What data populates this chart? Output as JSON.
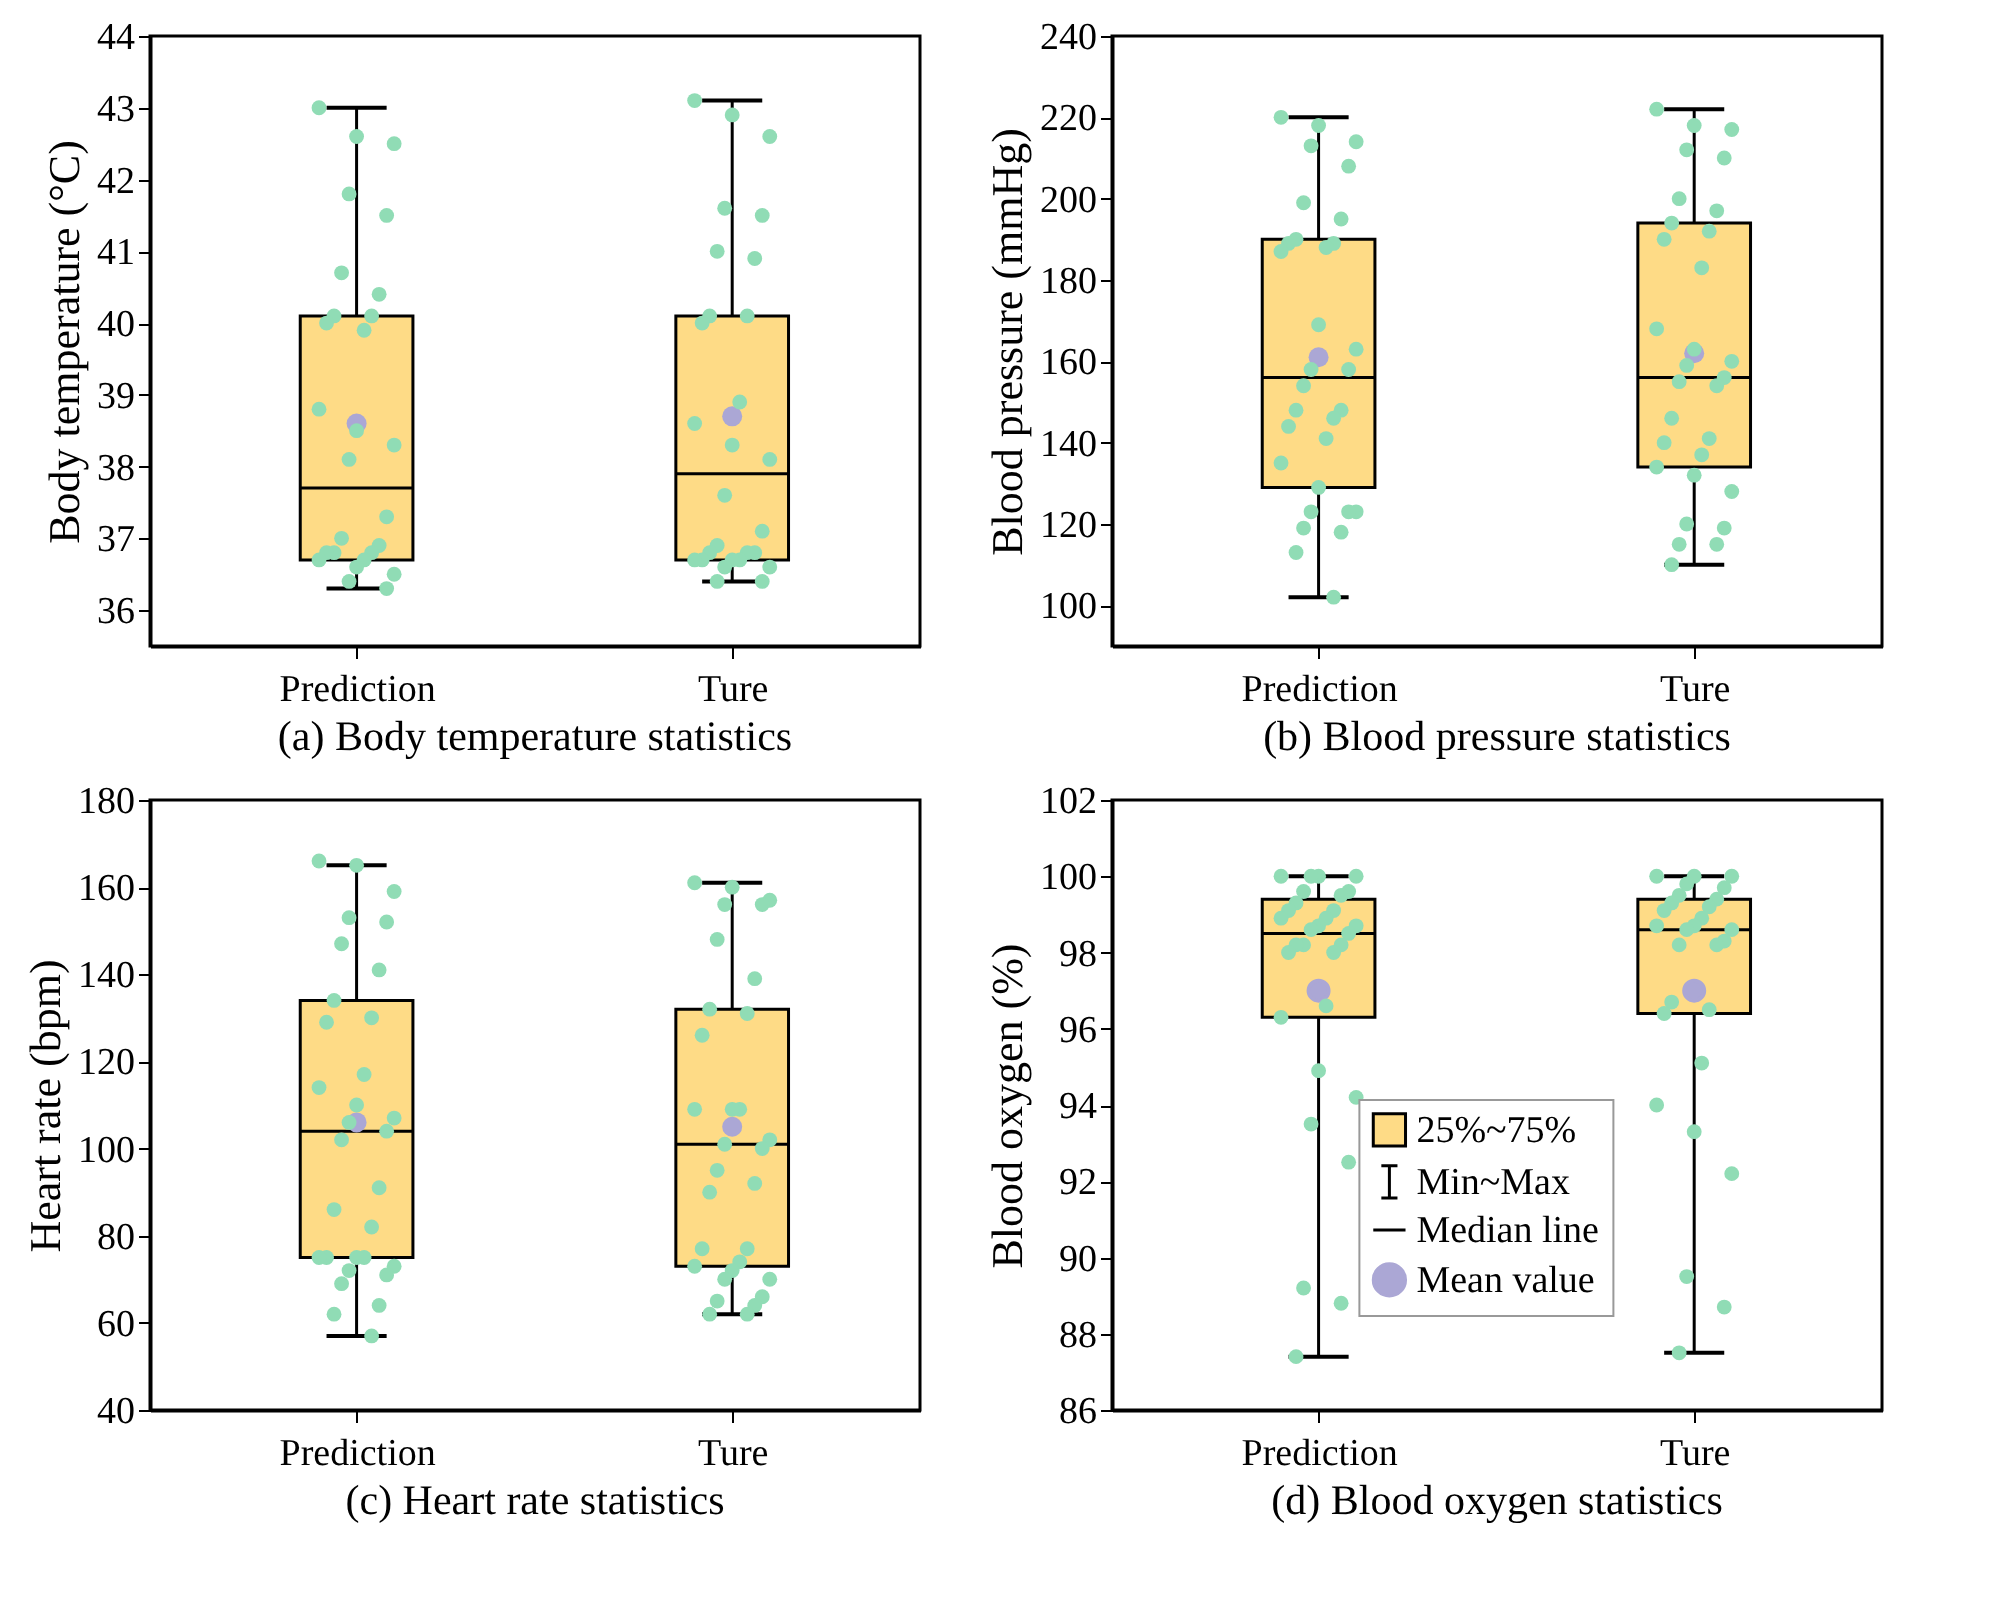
{
  "chart_data": [
    {
      "type": "box",
      "title": "(a) Body temperature statistics",
      "ylabel": "Body temperature (°C)",
      "categories": [
        "Prediction",
        "Ture"
      ],
      "ylim": [
        35.5,
        44
      ],
      "yticks": [
        36,
        37,
        38,
        39,
        40,
        41,
        42,
        43,
        44
      ],
      "series": [
        {
          "type": "box",
          "color": "#fedb86",
          "boxes": [
            {
              "low": 36.3,
              "q1": 36.7,
              "median": 37.7,
              "q3": 40.1,
              "high": 43.0
            },
            {
              "low": 36.4,
              "q1": 36.7,
              "median": 37.9,
              "q3": 40.1,
              "high": 43.1
            }
          ]
        },
        {
          "type": "scatter",
          "color": "#90dcb5",
          "x": [
            "Prediction",
            "Prediction",
            "Prediction",
            "Prediction",
            "Prediction",
            "Prediction",
            "Prediction",
            "Prediction",
            "Prediction",
            "Prediction",
            "Prediction",
            "Prediction",
            "Prediction",
            "Prediction",
            "Prediction",
            "Prediction",
            "Prediction",
            "Prediction",
            "Prediction",
            "Prediction",
            "Prediction",
            "Prediction",
            "Prediction",
            "Prediction",
            "Prediction",
            "Prediction",
            "Prediction"
          ],
          "values": [
            43.0,
            42.6,
            42.5,
            41.8,
            41.5,
            40.7,
            40.4,
            40.1,
            40.1,
            40.0,
            39.9,
            38.8,
            38.5,
            38.3,
            38.1,
            37.3,
            37.0,
            36.9,
            36.8,
            36.8,
            36.8,
            36.7,
            36.7,
            36.6,
            36.5,
            36.4,
            36.3
          ]
        },
        {
          "type": "scatter",
          "color": "#90dcb5",
          "x": [
            "Ture",
            "Ture",
            "Ture",
            "Ture",
            "Ture",
            "Ture",
            "Ture",
            "Ture",
            "Ture",
            "Ture",
            "Ture",
            "Ture",
            "Ture",
            "Ture",
            "Ture",
            "Ture",
            "Ture",
            "Ture",
            "Ture",
            "Ture",
            "Ture",
            "Ture",
            "Ture",
            "Ture",
            "Ture",
            "Ture",
            "Ture",
            "Ture"
          ],
          "values": [
            43.1,
            42.9,
            42.6,
            41.6,
            41.5,
            41.0,
            40.9,
            40.1,
            40.1,
            40.0,
            38.9,
            38.6,
            38.3,
            38.1,
            37.6,
            37.1,
            36.9,
            36.8,
            36.8,
            36.8,
            36.7,
            36.7,
            36.7,
            36.7,
            36.6,
            36.6,
            36.4,
            36.4
          ]
        },
        {
          "type": "scatter",
          "color": "#aba7d5",
          "x": [
            "Prediction",
            "Ture"
          ],
          "values": [
            38.6,
            38.7
          ]
        }
      ]
    },
    {
      "type": "box",
      "title": "(b) Blood pressure statistics",
      "ylabel": "Blood pressure (mmHg)",
      "categories": [
        "Prediction",
        "Ture"
      ],
      "ylim": [
        90,
        240
      ],
      "yticks": [
        100,
        120,
        140,
        160,
        180,
        200,
        220,
        240
      ],
      "series": [
        {
          "type": "box",
          "color": "#fedb86",
          "boxes": [
            {
              "low": 102,
              "q1": 129,
              "median": 156,
              "q3": 190,
              "high": 220
            },
            {
              "low": 110,
              "q1": 134,
              "median": 156,
              "q3": 194,
              "high": 222
            }
          ]
        },
        {
          "type": "scatter",
          "color": "#90dcb5",
          "x": [
            "Prediction",
            "Prediction",
            "Prediction",
            "Prediction",
            "Prediction",
            "Prediction",
            "Prediction",
            "Prediction",
            "Prediction",
            "Prediction",
            "Prediction",
            "Prediction",
            "Prediction",
            "Prediction",
            "Prediction",
            "Prediction",
            "Prediction",
            "Prediction",
            "Prediction",
            "Prediction",
            "Prediction",
            "Prediction",
            "Prediction",
            "Prediction",
            "Prediction",
            "Prediction",
            "Prediction",
            "Prediction",
            "Prediction",
            "Prediction",
            "Prediction"
          ],
          "values": [
            220,
            218,
            214,
            213,
            208,
            199,
            195,
            190,
            189,
            189,
            188,
            187,
            169,
            163,
            158,
            158,
            154,
            148,
            148,
            146,
            144,
            141,
            135,
            129,
            123,
            123,
            123,
            119,
            118,
            113,
            102
          ]
        },
        {
          "type": "scatter",
          "color": "#90dcb5",
          "x": [
            "Ture",
            "Ture",
            "Ture",
            "Ture",
            "Ture",
            "Ture",
            "Ture",
            "Ture",
            "Ture",
            "Ture",
            "Ture",
            "Ture",
            "Ture",
            "Ture",
            "Ture",
            "Ture",
            "Ture",
            "Ture",
            "Ture",
            "Ture",
            "Ture",
            "Ture",
            "Ture",
            "Ture",
            "Ture",
            "Ture",
            "Ture",
            "Ture",
            "Ture",
            "Ture"
          ],
          "values": [
            222,
            218,
            217,
            212,
            210,
            200,
            197,
            194,
            192,
            190,
            183,
            168,
            163,
            160,
            159,
            156,
            155,
            154,
            146,
            141,
            140,
            137,
            134,
            132,
            128,
            120,
            119,
            115,
            115,
            110
          ]
        },
        {
          "type": "scatter",
          "color": "#aba7d5",
          "x": [
            "Prediction",
            "Ture"
          ],
          "values": [
            161,
            162
          ]
        }
      ]
    },
    {
      "type": "box",
      "title": "(c) Heart rate statistics",
      "ylabel": "Heart rate (bpm)",
      "categories": [
        "Prediction",
        "Ture"
      ],
      "ylim": [
        40,
        180
      ],
      "yticks": [
        40,
        60,
        80,
        100,
        120,
        140,
        160,
        180
      ],
      "series": [
        {
          "type": "box",
          "color": "#fedb86",
          "boxes": [
            {
              "low": 57,
              "q1": 75,
              "median": 104,
              "q3": 134,
              "high": 165
            },
            {
              "low": 62,
              "q1": 73,
              "median": 101,
              "q3": 132,
              "high": 161
            }
          ]
        },
        {
          "type": "scatter",
          "color": "#90dcb5",
          "x": [
            "Prediction",
            "Prediction",
            "Prediction",
            "Prediction",
            "Prediction",
            "Prediction",
            "Prediction",
            "Prediction",
            "Prediction",
            "Prediction",
            "Prediction",
            "Prediction",
            "Prediction",
            "Prediction",
            "Prediction",
            "Prediction",
            "Prediction",
            "Prediction",
            "Prediction",
            "Prediction",
            "Prediction",
            "Prediction",
            "Prediction",
            "Prediction",
            "Prediction",
            "Prediction",
            "Prediction",
            "Prediction",
            "Prediction",
            "Prediction",
            "Prediction"
          ],
          "values": [
            166,
            165,
            159,
            153,
            152,
            147,
            141,
            134,
            130,
            129,
            117,
            114,
            110,
            107,
            106,
            104,
            102,
            91,
            86,
            82,
            75,
            75,
            75,
            75,
            73,
            72,
            71,
            69,
            64,
            62,
            57
          ]
        },
        {
          "type": "scatter",
          "color": "#90dcb5",
          "x": [
            "Ture",
            "Ture",
            "Ture",
            "Ture",
            "Ture",
            "Ture",
            "Ture",
            "Ture",
            "Ture",
            "Ture",
            "Ture",
            "Ture",
            "Ture",
            "Ture",
            "Ture",
            "Ture",
            "Ture",
            "Ture",
            "Ture",
            "Ture",
            "Ture",
            "Ture",
            "Ture",
            "Ture",
            "Ture",
            "Ture",
            "Ture",
            "Ture",
            "Ture",
            "Ture",
            "Ture"
          ],
          "values": [
            161,
            160,
            157,
            156,
            156,
            148,
            139,
            132,
            131,
            126,
            109,
            109,
            109,
            102,
            101,
            100,
            95,
            92,
            90,
            77,
            77,
            74,
            73,
            72,
            70,
            70,
            66,
            65,
            64,
            62,
            62
          ]
        },
        {
          "type": "scatter",
          "color": "#aba7d5",
          "x": [
            "Prediction",
            "Ture"
          ],
          "values": [
            106,
            105
          ]
        }
      ]
    },
    {
      "type": "box",
      "title": "(d) Blood oxygen statistics",
      "ylabel": "Blood oxygen (%)",
      "categories": [
        "Prediction",
        "Ture"
      ],
      "ylim": [
        86,
        102
      ],
      "yticks": [
        86,
        88,
        90,
        92,
        94,
        96,
        98,
        100,
        102
      ],
      "legend": "bottom",
      "annotations": [
        "Min~Max",
        "Median line"
      ],
      "series": [
        {
          "type": "box",
          "name": "25%~75%",
          "color": "#fedb86",
          "boxes": [
            {
              "low": 87.4,
              "q1": 96.3,
              "median": 98.5,
              "q3": 99.4,
              "high": 100
            },
            {
              "low": 87.5,
              "q1": 96.4,
              "median": 98.6,
              "q3": 99.4,
              "high": 100
            }
          ]
        },
        {
          "type": "scatter",
          "color": "#90dcb5",
          "x": [
            "Prediction",
            "Prediction",
            "Prediction",
            "Prediction",
            "Prediction",
            "Prediction",
            "Prediction",
            "Prediction",
            "Prediction",
            "Prediction",
            "Prediction",
            "Prediction",
            "Prediction",
            "Prediction",
            "Prediction",
            "Prediction",
            "Prediction",
            "Prediction",
            "Prediction",
            "Prediction",
            "Prediction",
            "Prediction",
            "Prediction",
            "Prediction",
            "Prediction",
            "Prediction",
            "Prediction",
            "Prediction",
            "Prediction",
            "Prediction"
          ],
          "values": [
            100,
            100,
            100,
            100,
            99.6,
            99.6,
            99.5,
            99.3,
            99.1,
            99.1,
            98.9,
            98.9,
            98.7,
            98.7,
            98.6,
            98.5,
            98.2,
            98.2,
            98.2,
            98.0,
            98.0,
            96.6,
            96.3,
            94.9,
            94.2,
            93.5,
            92.5,
            89.2,
            88.8,
            87.4
          ]
        },
        {
          "type": "scatter",
          "color": "#90dcb5",
          "x": [
            "Ture",
            "Ture",
            "Ture",
            "Ture",
            "Ture",
            "Ture",
            "Ture",
            "Ture",
            "Ture",
            "Ture",
            "Ture",
            "Ture",
            "Ture",
            "Ture",
            "Ture",
            "Ture",
            "Ture",
            "Ture",
            "Ture",
            "Ture",
            "Ture",
            "Ture",
            "Ture",
            "Ture",
            "Ture",
            "Ture",
            "Ture",
            "Ture"
          ],
          "values": [
            100,
            100,
            100,
            99.8,
            99.7,
            99.5,
            99.4,
            99.3,
            99.2,
            99.1,
            98.9,
            98.7,
            98.7,
            98.6,
            98.6,
            98.3,
            98.2,
            98.2,
            96.7,
            96.5,
            96.4,
            95.1,
            94.0,
            93.3,
            92.2,
            89.5,
            88.7,
            87.5
          ]
        },
        {
          "type": "scatter",
          "name": "Mean value",
          "color": "#aba7d5",
          "x": [
            "Prediction",
            "Ture"
          ],
          "values": [
            97.0,
            97.0
          ]
        }
      ]
    }
  ]
}
